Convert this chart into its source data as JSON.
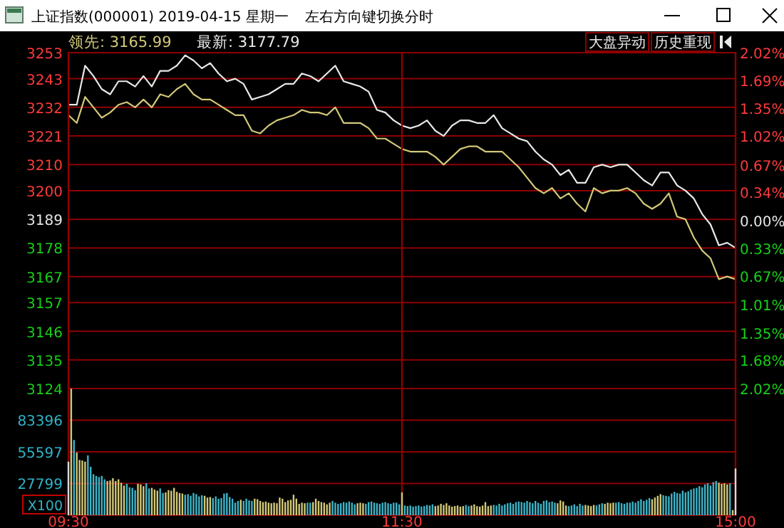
{
  "chart_data": [
    {
      "type": "line",
      "title": "上证指数(000001) 2019-04-15 星期一",
      "subtitle": "左右方向键切换分时",
      "annotations": [
        "领先: 3165.99",
        "最新: 3177.79",
        "大盘异动",
        "历史重现"
      ],
      "categories": [
        null,
        null,
        null,
        null,
        null,
        null,
        null,
        null,
        null,
        null,
        null,
        null,
        null,
        null,
        null,
        null,
        null,
        null,
        null,
        null,
        null,
        null,
        null,
        null,
        null,
        null,
        null,
        null,
        null,
        null,
        null,
        null,
        null,
        null,
        null,
        null,
        null,
        null,
        null,
        null,
        null,
        null,
        null,
        null,
        null,
        null,
        null,
        null,
        null,
        null,
        null,
        null,
        null,
        null,
        null,
        null,
        null,
        null,
        null,
        null,
        null,
        null,
        null,
        null,
        null,
        null,
        null,
        null,
        null,
        null,
        null,
        null,
        null,
        null,
        null,
        null,
        null,
        null,
        null,
        null,
        null
      ],
      "tick_labels": "y",
      "ylim": [
        3124,
        3253
      ],
      "yticks": [
        3253,
        3243,
        3232,
        3221,
        3210,
        3200,
        3189,
        3178,
        3167,
        3157,
        3146,
        3135,
        3124
      ],
      "y2lim": [
        -2.02,
        2.02
      ],
      "y2ticks": [
        {
          "value": 2.02,
          "label": "2.02%"
        },
        {
          "value": 1.69,
          "label": "1.69%"
        },
        {
          "value": 1.35,
          "label": "1.35%"
        },
        {
          "value": 1.02,
          "label": "1.02%"
        },
        {
          "value": 0.67,
          "label": "0.67%"
        },
        {
          "value": 0.34,
          "label": "0.34%"
        },
        {
          "value": 0,
          "label": "0.00%"
        },
        {
          "value": -0.33,
          "label": "0.33%"
        },
        {
          "value": -0.67,
          "label": "0.67%"
        },
        {
          "value": -1.01,
          "label": "1.01%"
        },
        {
          "value": -1.35,
          "label": "1.35%"
        },
        {
          "value": -1.68,
          "label": "1.68%"
        },
        {
          "value": -2.02,
          "label": "2.02%"
        }
      ],
      "grid": true,
      "line_style": "solid",
      "series": [
        {
          "color": "#d2c878",
          "values": [
            3229,
            3226,
            3236,
            3232,
            3228,
            3230,
            3233,
            3234,
            3232,
            3235,
            3232,
            3237,
            3236,
            3239,
            3241,
            3237,
            3235,
            3235,
            3233,
            3231,
            3229,
            3229,
            3223,
            3222,
            3225,
            3227,
            3228,
            3229,
            3231,
            3230,
            3230,
            3229,
            3232,
            3226,
            3226,
            3226,
            3224,
            3220,
            3220,
            3218,
            3216,
            3215,
            3215,
            3215,
            3213,
            3210,
            3213,
            3216,
            3217,
            3217,
            3215,
            3215,
            3215,
            3212,
            3209,
            3205,
            3201,
            3199,
            3201,
            3197,
            3199,
            3195,
            3192,
            3201,
            3199,
            3200,
            3200,
            3201,
            3199,
            3195,
            3193,
            3195,
            3199,
            3190,
            3189,
            3182,
            3177,
            3174,
            3166,
            3167,
            3166
          ]
        },
        {
          "color": "#e8e8e8",
          "values": [
            3233,
            3233,
            3248,
            3244,
            3239,
            3237,
            3242,
            3242,
            3240,
            3244,
            3240,
            3246,
            3246,
            3248,
            3252,
            3250,
            3247,
            3249,
            3245,
            3242,
            3243,
            3241,
            3235,
            3236,
            3237,
            3239,
            3241,
            3241,
            3245,
            3244,
            3242,
            3245,
            3248,
            3242,
            3241,
            3240,
            3238,
            3231,
            3230,
            3227,
            3225,
            3224,
            3225,
            3227,
            3223,
            3221,
            3225,
            3227,
            3227,
            3226,
            3226,
            3229,
            3224,
            3222,
            3220,
            3219,
            3215,
            3212,
            3210,
            3206,
            3208,
            3203,
            3203,
            3209,
            3210,
            3209,
            3210,
            3210,
            3207,
            3204,
            3202,
            3207,
            3207,
            3202,
            3200,
            3197,
            3191,
            3187,
            3179,
            3180,
            3178
          ]
        }
      ]
    },
    {
      "type": "bar",
      "categories": [
        "09:30",
        null,
        null,
        null,
        null,
        null,
        null,
        null,
        null,
        null,
        null,
        null,
        null,
        null,
        null,
        null,
        null,
        null,
        null,
        null,
        null,
        null,
        null,
        null,
        null,
        null,
        null,
        null,
        null,
        null,
        null,
        null,
        null,
        null,
        null,
        null,
        null,
        null,
        null,
        null,
        null,
        null,
        null,
        null,
        null,
        null,
        null,
        null,
        null,
        null,
        null,
        null,
        null,
        null,
        null,
        null,
        null,
        null,
        null,
        null,
        null,
        null,
        null,
        null,
        null,
        null,
        null,
        null,
        null,
        null,
        null,
        null,
        null,
        null,
        null,
        null,
        null,
        null,
        null,
        null,
        null,
        null,
        null,
        null,
        null,
        null,
        null,
        null,
        null,
        null,
        null,
        null,
        null,
        null,
        null,
        null,
        null,
        null,
        null,
        null,
        null,
        null,
        null,
        null,
        null,
        null,
        null,
        null,
        null,
        null,
        null,
        null,
        null,
        null,
        null,
        null,
        null,
        null,
        null,
        null,
        "11:30",
        null,
        null,
        null,
        null,
        null,
        null,
        null,
        null,
        null,
        null,
        null,
        null,
        null,
        null,
        null,
        null,
        null,
        null,
        null,
        null,
        null,
        null,
        null,
        null,
        null,
        null,
        null,
        null,
        null,
        null,
        null,
        null,
        null,
        null,
        null,
        null,
        null,
        null,
        null,
        null,
        null,
        null,
        null,
        null,
        null,
        null,
        null,
        null,
        null,
        null,
        null,
        null,
        null,
        null,
        null,
        null,
        null,
        null,
        null,
        null,
        null,
        null,
        null,
        null,
        null,
        null,
        null,
        null,
        null,
        null,
        null,
        null,
        null,
        null,
        null,
        null,
        null,
        null,
        null,
        null,
        null,
        null,
        null,
        null,
        null,
        null,
        null,
        null,
        null,
        null,
        null,
        null,
        null,
        null,
        null,
        null,
        null,
        null,
        null,
        null,
        null,
        null,
        null,
        null,
        null,
        null,
        null,
        null,
        null,
        null,
        null,
        null,
        null,
        null,
        null,
        null,
        null,
        null,
        null,
        "15:00"
      ],
      "ylim": [
        0,
        111194
      ],
      "yticks": [
        {
          "value": 0,
          "label": "X100"
        },
        27799,
        55597,
        83396,
        {
          "value": 111194,
          "label": null
        }
      ],
      "grid": true,
      "values": [
        47000,
        111000,
        66000,
        55000,
        48500,
        48000,
        47000,
        52500,
        42500,
        36000,
        34500,
        33500,
        34500,
        31500,
        30000,
        30500,
        32500,
        30000,
        31500,
        28500,
        26000,
        27500,
        24500,
        24000,
        22000,
        27500,
        27000,
        25500,
        28000,
        23500,
        24000,
        22500,
        21500,
        23500,
        19500,
        20000,
        22000,
        21500,
        24000,
        20500,
        19500,
        19000,
        18000,
        18500,
        17000,
        19500,
        18500,
        16500,
        17500,
        17000,
        15500,
        16000,
        15000,
        16500,
        14500,
        15000,
        19000,
        19500,
        16000,
        14500,
        11000,
        12500,
        13500,
        12500,
        14500,
        13000,
        12500,
        14500,
        14000,
        12500,
        11500,
        12000,
        11000,
        10500,
        11000,
        10500,
        15500,
        14500,
        11500,
        13000,
        13500,
        18000,
        14500,
        10000,
        11000,
        10500,
        11000,
        11000,
        11500,
        14500,
        12500,
        11500,
        11000,
        9500,
        11000,
        12500,
        11000,
        10000,
        10500,
        11500,
        11000,
        12000,
        11000,
        9500,
        10500,
        11000,
        10500,
        10000,
        11500,
        12000,
        11000,
        10500,
        10000,
        11000,
        11500,
        10500,
        10000,
        11000,
        11000,
        9500,
        20000,
        8500,
        8000,
        8500,
        7500,
        8000,
        8500,
        7500,
        8000,
        9000,
        8500,
        9500,
        8000,
        8500,
        10000,
        9000,
        10500,
        8500,
        7500,
        8000,
        8500,
        7500,
        8000,
        9000,
        8000,
        8500,
        9500,
        8000,
        7500,
        8500,
        11500,
        8000,
        8500,
        9000,
        8500,
        10000,
        8500,
        9500,
        10500,
        11000,
        10000,
        11500,
        12000,
        11500,
        11000,
        12500,
        11500,
        10500,
        12500,
        11000,
        10000,
        12500,
        13000,
        11500,
        12000,
        11000,
        10500,
        13000,
        12000,
        8500,
        8000,
        8500,
        9500,
        8000,
        10000,
        8500,
        9000,
        8500,
        8000,
        9000,
        8500,
        9500,
        10500,
        10000,
        11000,
        10500,
        11000,
        11000,
        11500,
        10500,
        10000,
        11000,
        11000,
        12000,
        11000,
        12500,
        14000,
        12500,
        13500,
        15000,
        14000,
        15500,
        17000,
        18500,
        17500,
        17000,
        16500,
        19000,
        20500,
        19500,
        19000,
        21500,
        20000,
        21000,
        22500,
        23500,
        24000,
        25500,
        24500,
        27000,
        28000,
        26000,
        29000,
        30000,
        28500,
        27500,
        28000,
        27000,
        28000,
        4500,
        41000
      ],
      "colors": [
        "#d8d8d8",
        "#d2c878",
        "#3cb4c8",
        "#d2c878",
        "#d2c878",
        "#d2c878",
        "#d2c878",
        "#3cb4c8",
        "#3cb4c8",
        "#3cb4c8",
        "#3cb4c8",
        "#3cb4c8",
        "#3cb4c8",
        "#3cb4c8",
        "#d2c878",
        "#d2c878",
        "#d2c878",
        "#d2c878",
        "#d2c878",
        "#d2c878",
        "#d2c878",
        "#3cb4c8",
        "#3cb4c8",
        "#3cb4c8",
        "#3cb4c8",
        "#d2c878",
        "#d2c878",
        "#d2c878",
        "#3cb4c8",
        "#3cb4c8",
        "#d2c878",
        "#d2c878",
        "#d2c878",
        "#3cb4c8",
        "#3cb4c8",
        "#d2c878",
        "#d2c878",
        "#d2c878",
        "#d2c878",
        "#d2c878",
        "#d2c878",
        "#d2c878",
        "#3cb4c8",
        "#3cb4c8",
        "#3cb4c8",
        "#3cb4c8",
        "#3cb4c8",
        "#3cb4c8",
        "#3cb4c8",
        "#d2c878",
        "#d2c878",
        "#d2c878",
        "#3cb4c8",
        "#3cb4c8",
        "#3cb4c8",
        "#3cb4c8",
        "#3cb4c8",
        "#3cb4c8",
        "#3cb4c8",
        "#3cb4c8",
        "#3cb4c8",
        "#3cb4c8",
        "#d2c878",
        "#3cb4c8",
        "#3cb4c8",
        "#3cb4c8",
        "#3cb4c8",
        "#d2c878",
        "#d2c878",
        "#d2c878",
        "#d2c878",
        "#d2c878",
        "#d2c878",
        "#d2c878",
        "#d2c878",
        "#d2c878",
        "#d2c878",
        "#d2c878",
        "#d2c878",
        "#d2c878",
        "#d2c878",
        "#d2c878",
        "#d2c878",
        "#d2c878",
        "#d2c878",
        "#d2c878",
        "#3cb4c8",
        "#3cb4c8",
        "#d2c878",
        "#d2c878",
        "#d2c878",
        "#d2c878",
        "#d2c878",
        "#d2c878",
        "#d2c878",
        "#3cb4c8",
        "#3cb4c8",
        "#3cb4c8",
        "#3cb4c8",
        "#3cb4c8",
        "#3cb4c8",
        "#3cb4c8",
        "#3cb4c8",
        "#3cb4c8",
        "#d2c878",
        "#d2c878",
        "#d2c878",
        "#3cb4c8",
        "#3cb4c8",
        "#3cb4c8",
        "#3cb4c8",
        "#3cb4c8",
        "#3cb4c8",
        "#3cb4c8",
        "#3cb4c8",
        "#3cb4c8",
        "#3cb4c8",
        "#3cb4c8",
        "#3cb4c8",
        "#3cb4c8",
        "#d2c878",
        "#3cb4c8",
        "#3cb4c8",
        "#3cb4c8",
        "#3cb4c8",
        "#3cb4c8",
        "#3cb4c8",
        "#3cb4c8",
        "#3cb4c8",
        "#3cb4c8",
        "#3cb4c8",
        "#3cb4c8",
        "#d2c878",
        "#d2c878",
        "#d2c878",
        "#d2c878",
        "#d2c878",
        "#d2c878",
        "#d2c878",
        "#d2c878",
        "#d2c878",
        "#d2c878",
        "#d2c878",
        "#3cb4c8",
        "#3cb4c8",
        "#d2c878",
        "#d2c878",
        "#d2c878",
        "#d2c878",
        "#d2c878",
        "#d2c878",
        "#d2c878",
        "#d2c878",
        "#3cb4c8",
        "#3cb4c8",
        "#3cb4c8",
        "#3cb4c8",
        "#3cb4c8",
        "#3cb4c8",
        "#3cb4c8",
        "#3cb4c8",
        "#3cb4c8",
        "#3cb4c8",
        "#3cb4c8",
        "#3cb4c8",
        "#3cb4c8",
        "#3cb4c8",
        "#3cb4c8",
        "#3cb4c8",
        "#3cb4c8",
        "#3cb4c8",
        "#3cb4c8",
        "#3cb4c8",
        "#3cb4c8",
        "#3cb4c8",
        "#3cb4c8",
        "#d2c878",
        "#d2c878",
        "#d2c878",
        "#d2c878",
        "#3cb4c8",
        "#3cb4c8",
        "#3cb4c8",
        "#3cb4c8",
        "#3cb4c8",
        "#3cb4c8",
        "#d2c878",
        "#d2c878",
        "#d2c878",
        "#d2c878",
        "#3cb4c8",
        "#3cb4c8",
        "#3cb4c8",
        "#d2c878",
        "#d2c878",
        "#d2c878",
        "#d2c878",
        "#3cb4c8",
        "#3cb4c8",
        "#3cb4c8",
        "#3cb4c8",
        "#3cb4c8",
        "#3cb4c8",
        "#3cb4c8",
        "#3cb4c8",
        "#3cb4c8",
        "#3cb4c8",
        "#3cb4c8",
        "#3cb4c8",
        "#3cb4c8",
        "#d2c878",
        "#d2c878",
        "#d2c878",
        "#d2c878",
        "#3cb4c8",
        "#3cb4c8",
        "#3cb4c8",
        "#3cb4c8",
        "#3cb4c8",
        "#3cb4c8",
        "#3cb4c8",
        "#3cb4c8",
        "#3cb4c8",
        "#3cb4c8",
        "#3cb4c8",
        "#3cb4c8",
        "#3cb4c8",
        "#3cb4c8",
        "#3cb4c8",
        "#3cb4c8",
        "#3cb4c8",
        "#3cb4c8",
        "#3cb4c8",
        "#3cb4c8",
        "#d2c878",
        "#d2c878",
        "#d2c878",
        "#d2c878",
        "#3cb4c8",
        "#d2c878",
        "#d8d8d8"
      ]
    }
  ]
}
